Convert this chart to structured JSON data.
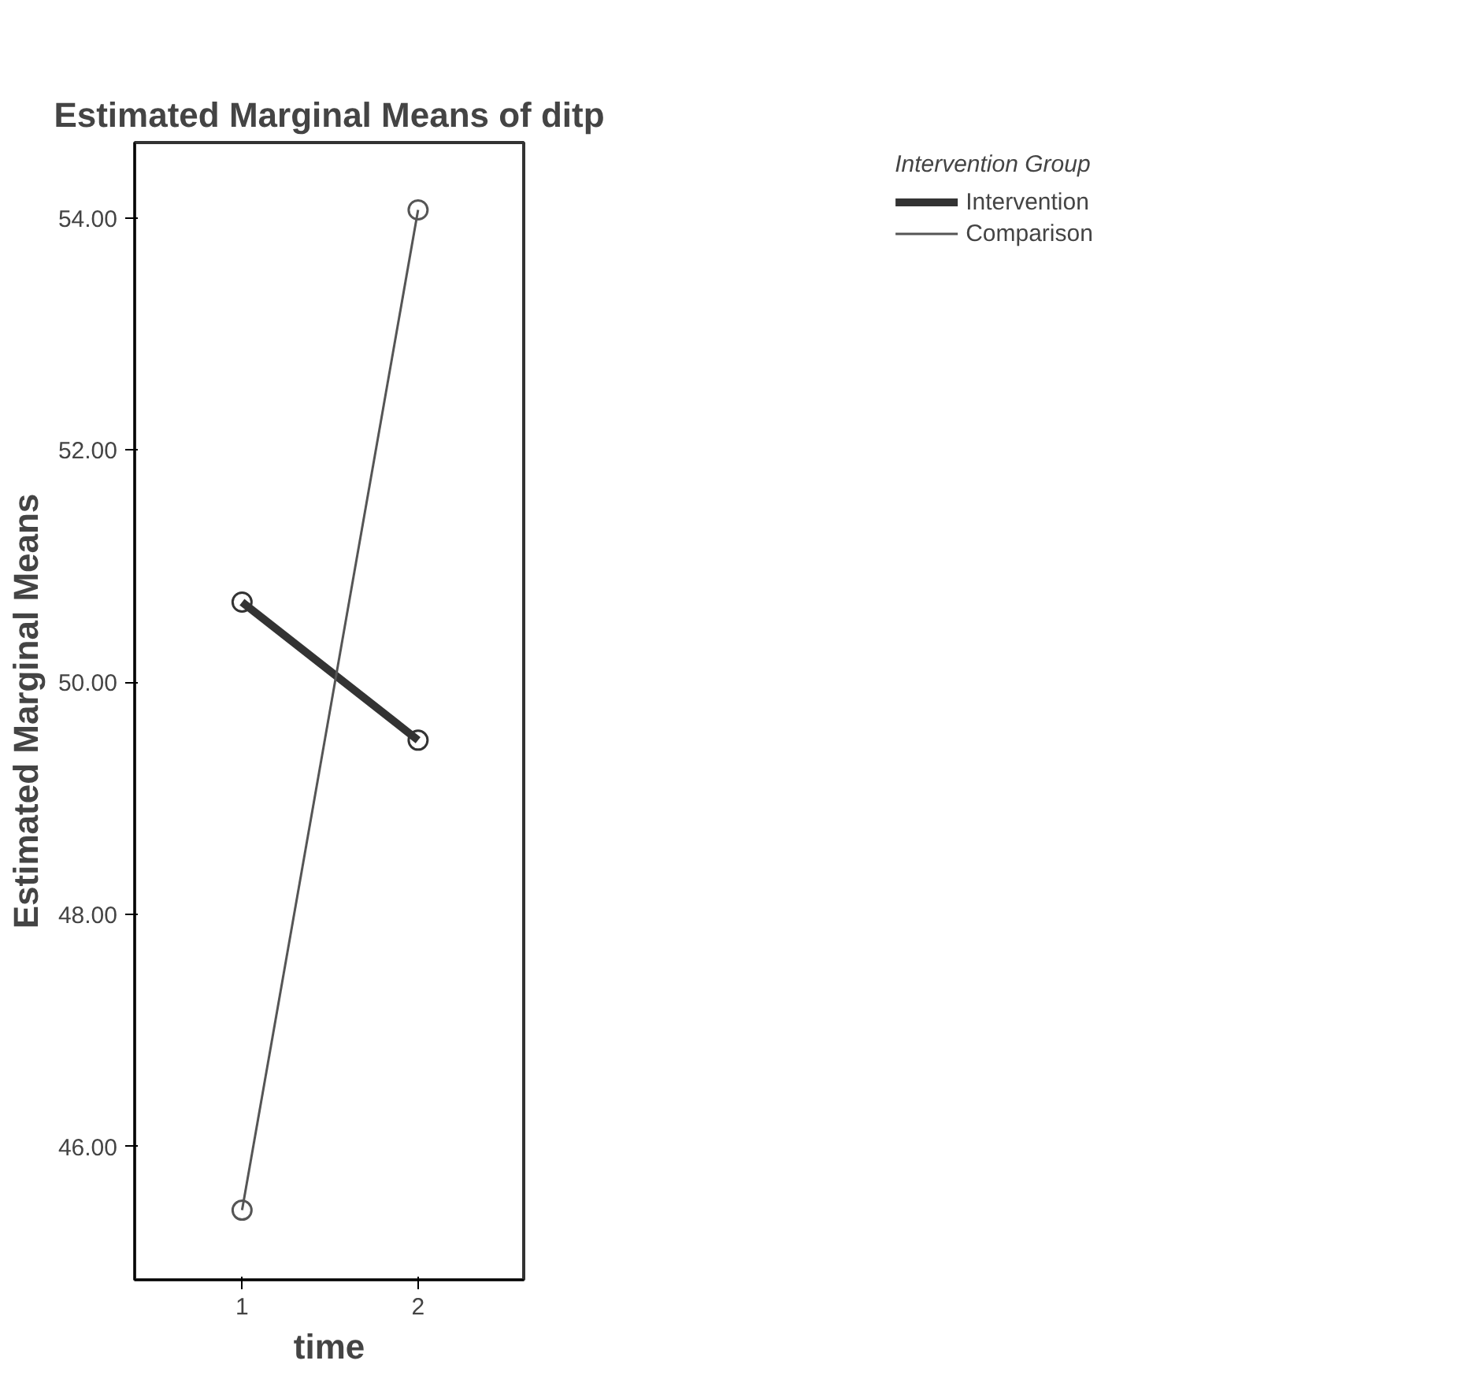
{
  "chart_data": {
    "type": "line",
    "title": "Estimated Marginal Means of ditp",
    "xlabel": "time",
    "ylabel": "Estimated Marginal Means",
    "legend_title": "Intervention Group",
    "categories": [
      "1",
      "2"
    ],
    "series": [
      {
        "name": "Intervention",
        "color": "#333333",
        "values": [
          50.69,
          49.5
        ]
      },
      {
        "name": "Comparison",
        "color": "#555555",
        "values": [
          45.45,
          54.07
        ]
      }
    ],
    "ylim": [
      44.85,
      54.65
    ],
    "yticks": [
      {
        "value": 46,
        "label": "46.00"
      },
      {
        "value": 48,
        "label": "48.00"
      },
      {
        "value": 50,
        "label": "50.00"
      },
      {
        "value": 52,
        "label": "52.00"
      },
      {
        "value": 54,
        "label": "54.00"
      }
    ],
    "grid": false,
    "legend": "top right",
    "marker": "circle",
    "line_style": "solid"
  }
}
